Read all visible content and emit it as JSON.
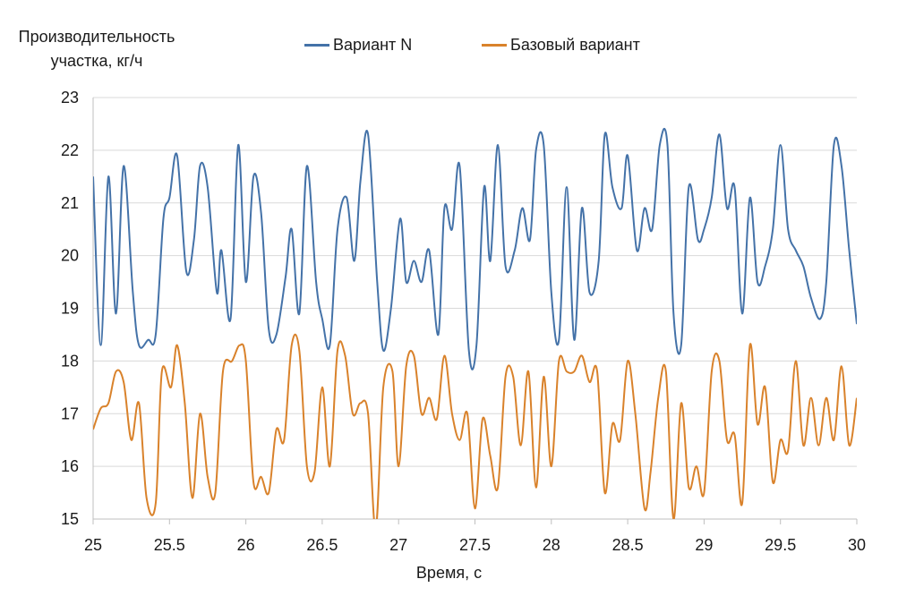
{
  "chart_data": {
    "type": "line",
    "ylabel_lines": [
      "Производительность",
      "участка, кг/ч"
    ],
    "xlabel": "Время, с",
    "xlim": [
      25,
      30
    ],
    "ylim": [
      15,
      23
    ],
    "x_ticks": [
      "25",
      "25.5",
      "26",
      "26.5",
      "27",
      "27.5",
      "28",
      "28.5",
      "29",
      "29.5",
      "30"
    ],
    "y_ticks": [
      "15",
      "16",
      "17",
      "18",
      "19",
      "20",
      "21",
      "22",
      "23"
    ],
    "grid": "horizontal",
    "legend_position": "top",
    "series": [
      {
        "name": "Вариант N",
        "color": "#4472a8",
        "x": [
          25.0,
          25.05,
          25.1,
          25.15,
          25.2,
          25.26,
          25.3,
          25.36,
          25.41,
          25.46,
          25.5,
          25.55,
          25.61,
          25.66,
          25.7,
          25.75,
          25.81,
          25.84,
          25.9,
          25.95,
          26.0,
          26.05,
          26.1,
          26.15,
          26.2,
          26.26,
          26.3,
          26.35,
          26.4,
          26.46,
          26.5,
          26.55,
          26.6,
          26.66,
          26.71,
          26.75,
          26.8,
          26.86,
          26.9,
          26.95,
          27.01,
          27.05,
          27.1,
          27.15,
          27.2,
          27.26,
          27.3,
          27.35,
          27.4,
          27.46,
          27.51,
          27.56,
          27.6,
          27.65,
          27.7,
          27.76,
          27.81,
          27.86,
          27.9,
          27.95,
          28.0,
          28.05,
          28.1,
          28.15,
          28.2,
          28.25,
          28.31,
          28.35,
          28.4,
          28.46,
          28.5,
          28.56,
          28.61,
          28.66,
          28.71,
          28.76,
          28.8,
          28.85,
          28.9,
          28.96,
          29.0,
          29.05,
          29.1,
          29.15,
          29.2,
          29.25,
          29.3,
          29.35,
          29.4,
          29.45,
          29.5,
          29.55,
          29.6,
          29.65,
          29.7,
          29.76,
          29.8,
          29.85,
          29.9,
          29.95,
          30.0
        ],
        "y": [
          21.5,
          18.3,
          21.5,
          18.9,
          21.7,
          19.3,
          18.3,
          18.4,
          18.5,
          20.7,
          21.1,
          21.9,
          19.7,
          20.3,
          21.7,
          21.3,
          19.3,
          20.1,
          18.8,
          22.1,
          19.5,
          21.5,
          20.8,
          18.6,
          18.5,
          19.6,
          20.5,
          18.9,
          21.7,
          19.5,
          18.8,
          18.3,
          20.5,
          21.1,
          19.9,
          21.4,
          22.3,
          19.5,
          18.2,
          19.0,
          20.7,
          19.5,
          19.9,
          19.5,
          20.1,
          18.5,
          20.9,
          20.5,
          21.7,
          18.2,
          18.3,
          21.3,
          19.9,
          22.1,
          19.8,
          20.1,
          20.9,
          20.3,
          22.0,
          22.1,
          19.3,
          18.4,
          21.3,
          18.4,
          20.9,
          19.3,
          19.9,
          22.3,
          21.3,
          20.9,
          21.9,
          20.1,
          20.9,
          20.5,
          22.1,
          22.1,
          18.9,
          18.3,
          21.3,
          20.3,
          20.5,
          21.1,
          22.3,
          20.9,
          21.3,
          18.9,
          21.1,
          19.5,
          19.8,
          20.5,
          22.1,
          20.5,
          20.1,
          19.8,
          19.2,
          18.8,
          19.5,
          22.1,
          21.7,
          20.1,
          18.7
        ]
      },
      {
        "name": "Базовый вариант",
        "color": "#d9822b",
        "x": [
          25.0,
          25.05,
          25.1,
          25.15,
          25.2,
          25.25,
          25.3,
          25.35,
          25.41,
          25.45,
          25.51,
          25.55,
          25.6,
          25.65,
          25.7,
          25.75,
          25.8,
          25.85,
          25.91,
          25.96,
          26.0,
          26.05,
          26.1,
          26.15,
          26.2,
          26.25,
          26.3,
          26.35,
          26.4,
          26.45,
          26.5,
          26.55,
          26.6,
          26.65,
          26.7,
          26.75,
          26.8,
          26.85,
          26.9,
          26.96,
          27.0,
          27.05,
          27.1,
          27.15,
          27.2,
          27.25,
          27.3,
          27.35,
          27.4,
          27.45,
          27.5,
          27.55,
          27.6,
          27.65,
          27.7,
          27.75,
          27.8,
          27.85,
          27.9,
          27.95,
          28.0,
          28.05,
          28.1,
          28.15,
          28.2,
          28.25,
          28.3,
          28.35,
          28.4,
          28.45,
          28.5,
          28.55,
          28.61,
          28.65,
          28.7,
          28.75,
          28.8,
          28.85,
          28.9,
          28.95,
          29.0,
          29.05,
          29.1,
          29.15,
          29.2,
          29.25,
          29.3,
          29.35,
          29.4,
          29.45,
          29.5,
          29.55,
          29.6,
          29.65,
          29.7,
          29.75,
          29.8,
          29.85,
          29.9,
          29.95,
          30.0
        ],
        "y": [
          16.7,
          17.1,
          17.2,
          17.8,
          17.6,
          16.5,
          17.2,
          15.4,
          15.3,
          17.8,
          17.5,
          18.3,
          17.2,
          15.4,
          17.0,
          15.8,
          15.5,
          17.8,
          18.0,
          18.3,
          18.0,
          15.7,
          15.8,
          15.5,
          16.7,
          16.5,
          18.3,
          18.2,
          16.0,
          15.9,
          17.5,
          16.0,
          18.2,
          18.1,
          17.0,
          17.2,
          17.0,
          14.8,
          17.5,
          17.8,
          16.0,
          17.9,
          18.1,
          17.0,
          17.3,
          16.9,
          18.1,
          17.0,
          16.5,
          17.0,
          15.2,
          16.9,
          16.2,
          15.6,
          17.7,
          17.7,
          16.4,
          17.8,
          15.6,
          17.7,
          16.0,
          18.0,
          17.8,
          17.8,
          18.1,
          17.6,
          17.8,
          15.5,
          16.8,
          16.5,
          18.0,
          17.0,
          15.2,
          15.9,
          17.3,
          17.8,
          15.0,
          17.2,
          15.6,
          16.0,
          15.5,
          17.8,
          18.0,
          16.5,
          16.6,
          15.3,
          18.3,
          16.8,
          17.5,
          15.7,
          16.5,
          16.3,
          18.0,
          16.4,
          17.3,
          16.4,
          17.3,
          16.5,
          17.9,
          16.4,
          17.3
        ]
      }
    ]
  }
}
